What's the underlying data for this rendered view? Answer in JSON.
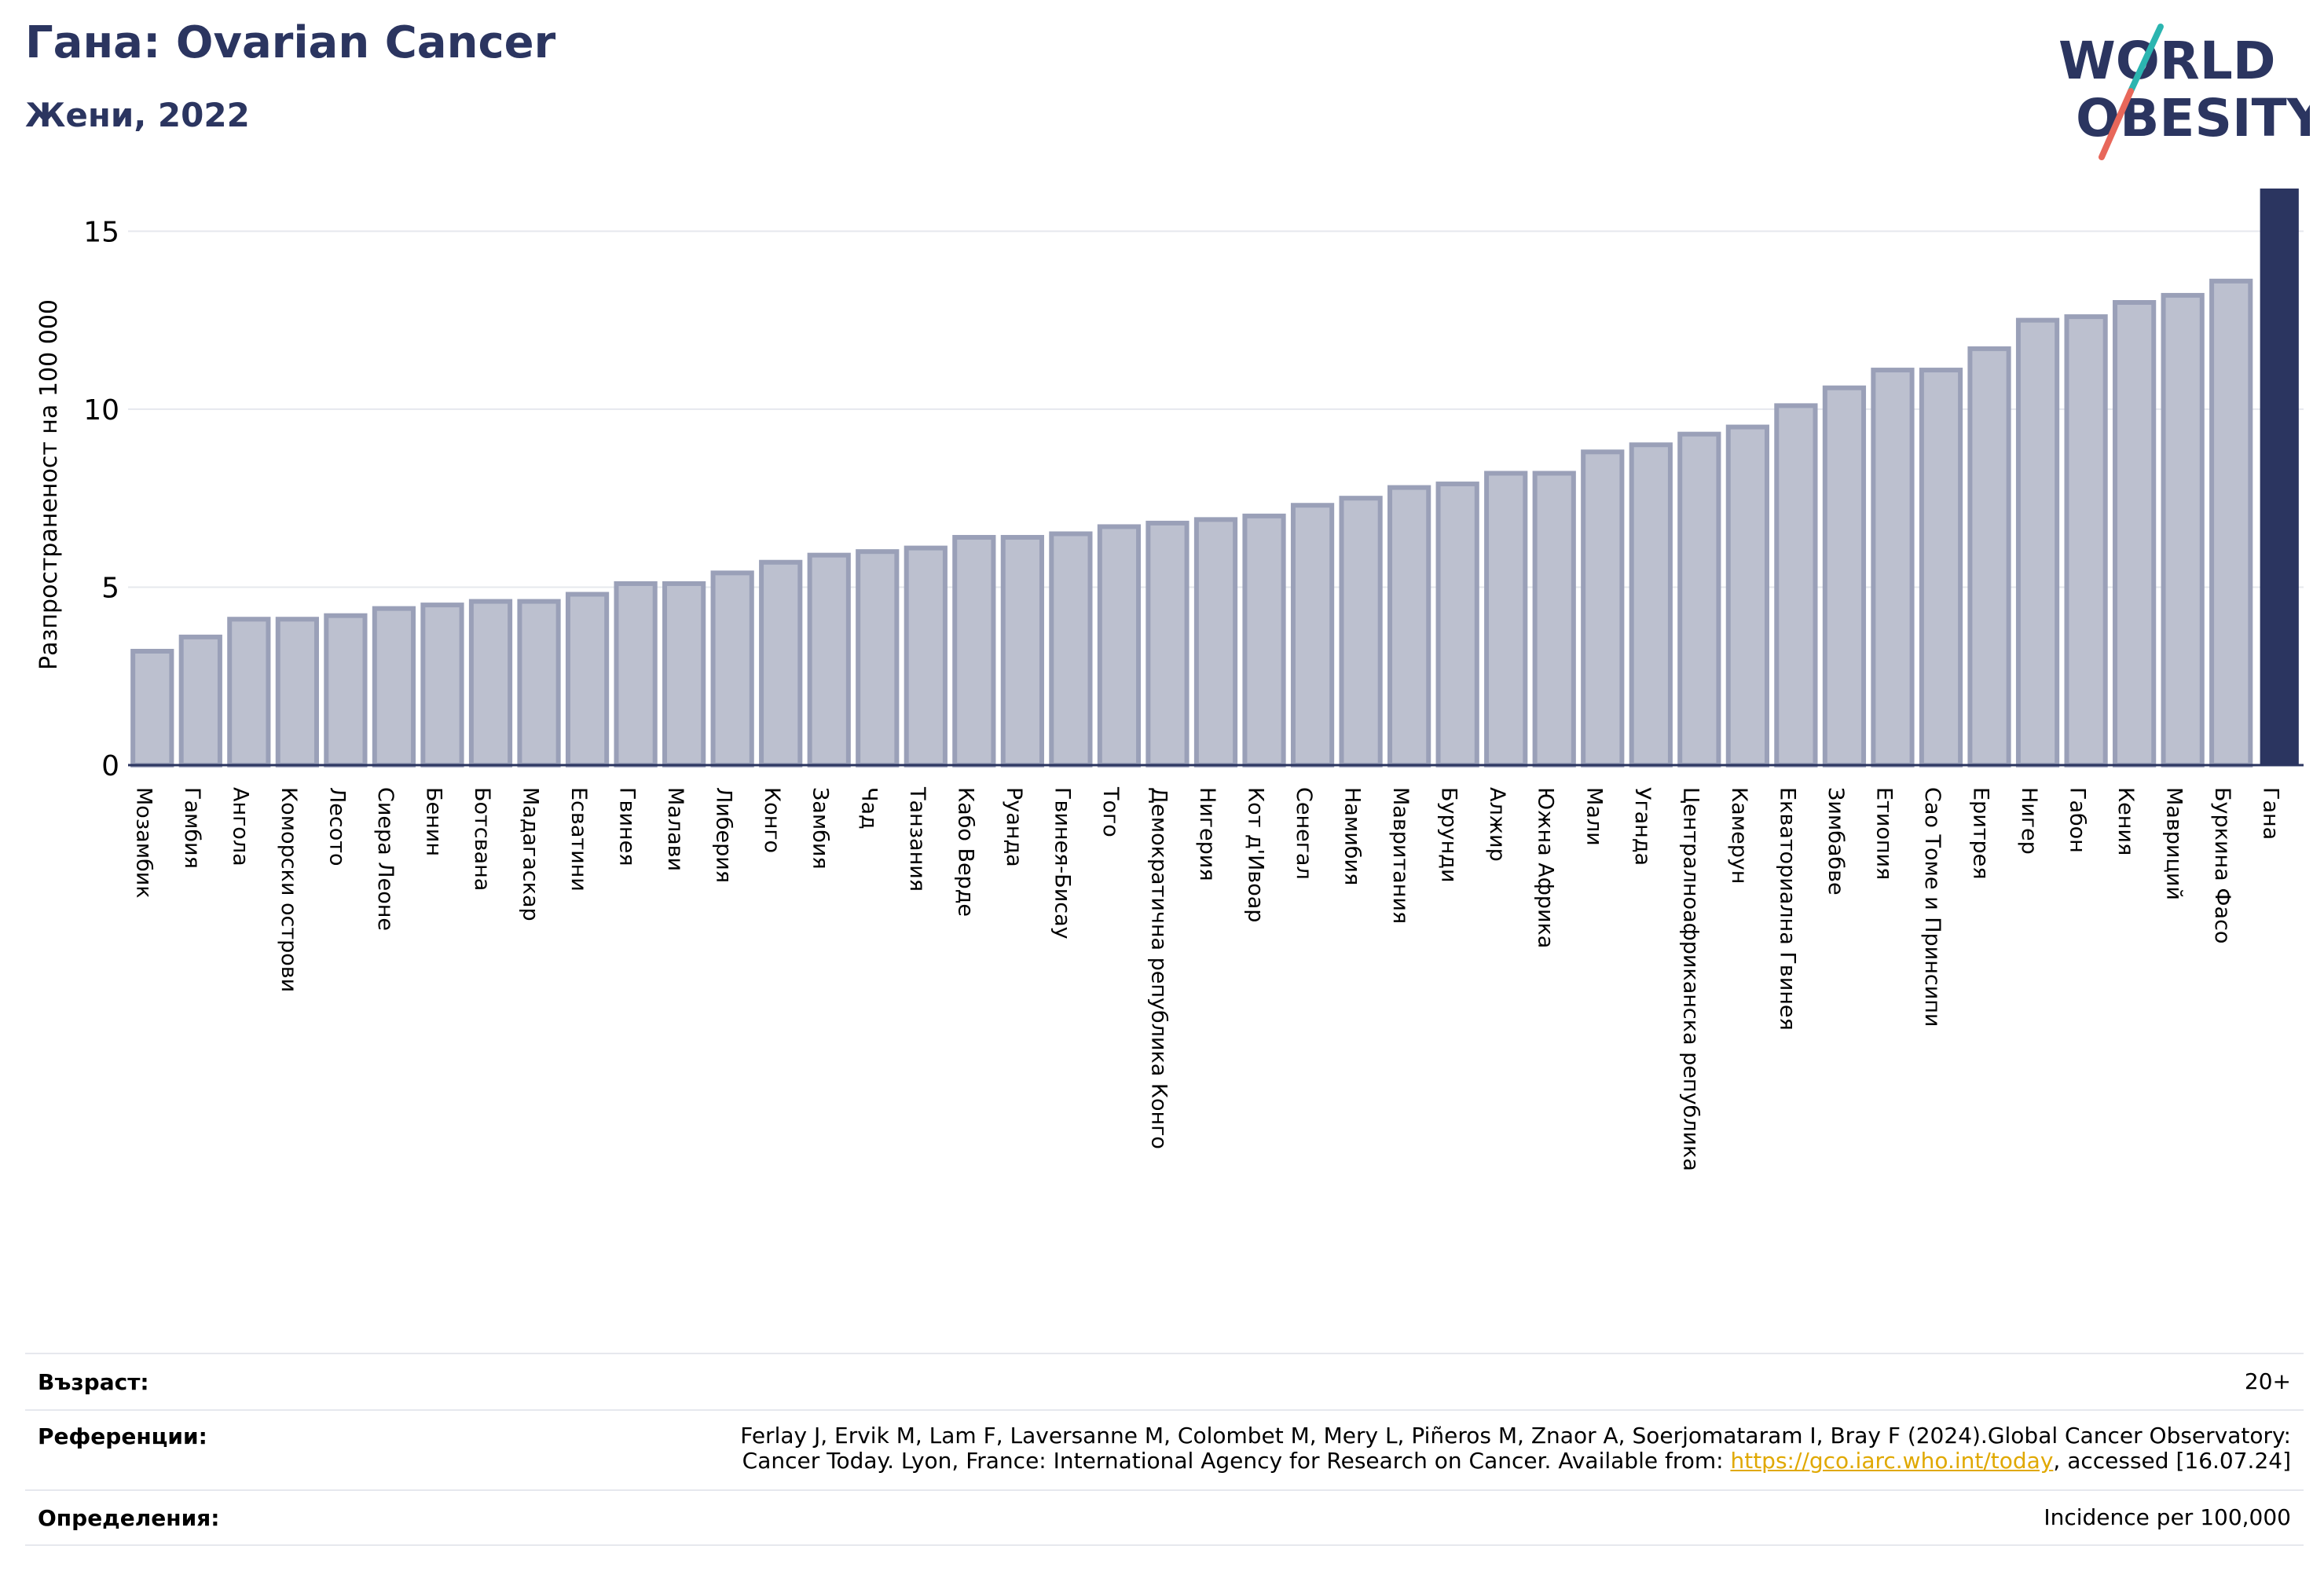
{
  "header": {
    "title": "Гана: Ovarian Cancer",
    "subtitle": "Жени, 2022"
  },
  "logo": {
    "line1": "WORLD",
    "line2": "OBESITY",
    "text_color": "#2b3560",
    "slash_teal": "#2bb5b0",
    "slash_coral": "#e8675a"
  },
  "colors": {
    "bar_fill": "#bcc0cf",
    "bar_edge": "#9aa0b8",
    "highlight_bar": "#2b3560",
    "grid": "#e6e8ee",
    "axis": "#000000"
  },
  "chart_data": {
    "type": "bar",
    "title": "Гана: Ovarian Cancer",
    "subtitle": "Жени, 2022",
    "xlabel": "",
    "ylabel": "Разпространеност  на 100 000",
    "ylim": [
      0,
      16.2
    ],
    "yticks": [
      0,
      5,
      10,
      15
    ],
    "grid": true,
    "highlight": "Гана",
    "categories": [
      "Мозамбик",
      "Гамбия",
      "Ангола",
      "Коморски острови",
      "Лесото",
      "Сиера Леоне",
      "Бенин",
      "Ботсвана",
      "Мадагаскар",
      "Есватини",
      "Гвинея",
      "Малави",
      "Либерия",
      "Конго",
      "Замбия",
      "Чад",
      "Танзания",
      "Кабо Верде",
      "Руанда",
      "Гвинея-Бисау",
      "Того",
      "Демократична република Конго",
      "Нигерия",
      "Кот д'Ивоар",
      "Сенегал",
      "Намибия",
      "Мавритания",
      "Бурунди",
      "Алжир",
      "Южна Африка",
      "Мали",
      "Уганда",
      "Централноафриканска република",
      "Камерун",
      "Екваториална Гвинея",
      "Зимбабве",
      "Етиопия",
      "Сао Томе и Принсипи",
      "Еритрея",
      "Нигер",
      "Габон",
      "Кения",
      "Мавриций",
      "Буркина Фасо",
      "Гана"
    ],
    "values": [
      3.2,
      3.6,
      4.1,
      4.1,
      4.2,
      4.4,
      4.5,
      4.6,
      4.6,
      4.8,
      5.1,
      5.1,
      5.4,
      5.7,
      5.9,
      6.0,
      6.1,
      6.4,
      6.4,
      6.5,
      6.7,
      6.8,
      6.9,
      7.0,
      7.3,
      7.5,
      7.8,
      7.9,
      8.2,
      8.2,
      8.8,
      9.0,
      9.3,
      9.5,
      10.1,
      10.6,
      11.1,
      11.1,
      11.7,
      12.5,
      12.6,
      13.0,
      13.2,
      13.6,
      16.2
    ]
  },
  "footer": {
    "age_label": "Възраст:",
    "age_value": "20+",
    "references_label": "Референции:",
    "references_line1": "Ferlay J, Ervik M, Lam F, Laversanne M, Colombet M, Mery L, Piñeros M, Znaor A, Soerjomataram I, Bray F (2024).Global Cancer Observatory:",
    "references_line2_prefix": "Cancer Today. Lyon, France: International Agency for Research on Cancer. Available from: ",
    "references_link": "https://gco.iarc.who.int/today",
    "references_line2_suffix": ", accessed [16.07.24]",
    "definitions_label": "Определения:",
    "definitions_value": "Incidence per 100,000"
  }
}
